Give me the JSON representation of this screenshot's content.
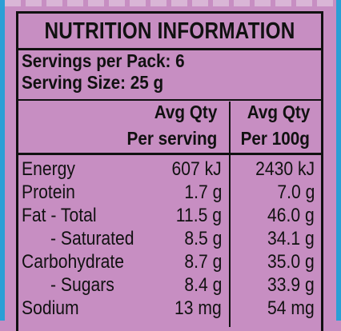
{
  "panel": {
    "title": "NUTRITION INFORMATION",
    "servings_per_pack": "Servings per Pack: 6",
    "serving_size": "Serving Size: 25 g",
    "headers": {
      "per_serving_line1": "Avg Qty",
      "per_serving_line2": "Per serving",
      "per_100g_line1": "Avg Qty",
      "per_100g_line2": "Per 100g"
    },
    "rows": [
      {
        "label": "Energy",
        "per_serving": "607 kJ",
        "per_100g": "2430 kJ"
      },
      {
        "label": "Protein",
        "per_serving": "1.7 g",
        "per_100g": "7.0 g"
      },
      {
        "label": "Fat - Total",
        "per_serving": "11.5 g",
        "per_100g": "46.0 g"
      },
      {
        "label": "- Saturated",
        "per_serving": "8.5 g",
        "per_100g": "34.1 g"
      },
      {
        "label": "Carbohydrate",
        "per_serving": "8.7 g",
        "per_100g": "35.0 g"
      },
      {
        "label": "- Sugars",
        "per_serving": "8.4 g",
        "per_100g": "33.9 g"
      },
      {
        "label": "Sodium",
        "per_serving": "13 mg",
        "per_100g": "54 mg"
      }
    ]
  },
  "colors": {
    "background": "#c78ec2",
    "edge": "#2a9fd6",
    "ink": "#111111"
  }
}
